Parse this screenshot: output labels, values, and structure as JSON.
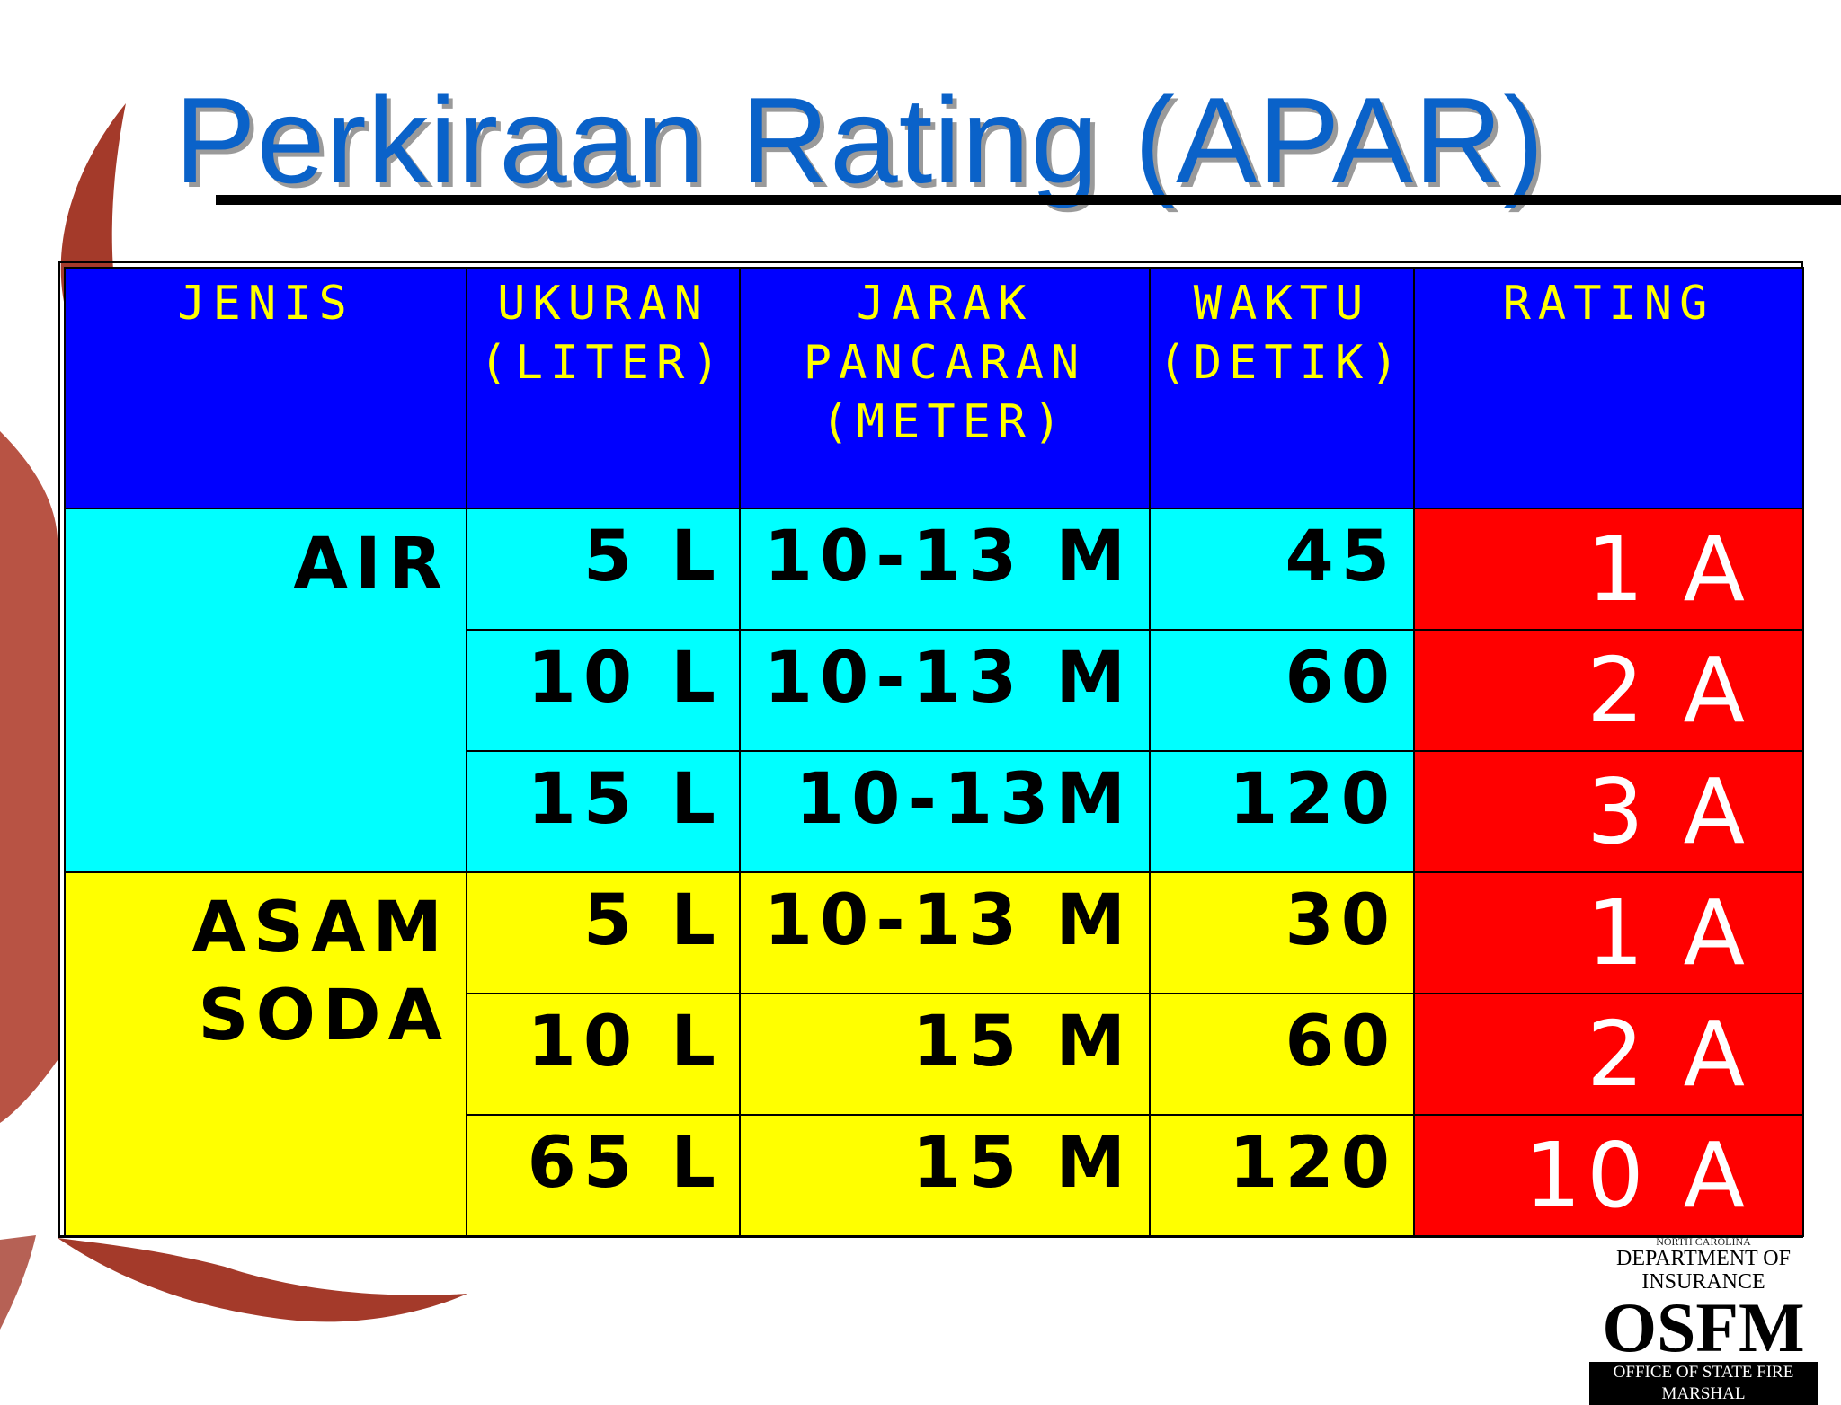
{
  "slide": {
    "title": "Perkiraan Rating (APAR)"
  },
  "table": {
    "headers": [
      [
        "JENIS"
      ],
      [
        "UKURAN",
        "(LITER)"
      ],
      [
        "JARAK",
        "PANCARAN",
        "(METER)"
      ],
      [
        "WAKTU",
        "(DETIK)"
      ],
      [
        "RATING"
      ]
    ],
    "groups": [
      {
        "type_lines": [
          "AIR"
        ],
        "color": "#00ffff",
        "rows": [
          {
            "ukuran": "5 L",
            "jarak": "10-13 M",
            "waktu": "45",
            "rating": "1 A"
          },
          {
            "ukuran": "10 L",
            "jarak": "10-13 M",
            "waktu": "60",
            "rating": "2 A"
          },
          {
            "ukuran": "15 L",
            "jarak": "10-13M",
            "waktu": "120",
            "rating": "3 A"
          }
        ]
      },
      {
        "type_lines": [
          "ASAM",
          "SODA"
        ],
        "color": "#ffff00",
        "rows": [
          {
            "ukuran": "5 L",
            "jarak": "10-13 M",
            "waktu": "30",
            "rating": "1 A"
          },
          {
            "ukuran": "10 L",
            "jarak": "15 M",
            "waktu": "60",
            "rating": "2 A"
          },
          {
            "ukuran": "65 L",
            "jarak": "15 M",
            "waktu": "120",
            "rating": "10 A"
          }
        ]
      }
    ],
    "colors": {
      "header_bg": "#0000ff",
      "header_text": "#ffff00",
      "rating_bg": "#ff0000",
      "rating_text": "#ffffff"
    }
  },
  "logo": {
    "small": "NORTH CAROLINA",
    "dept": "DEPARTMENT OF INSURANCE",
    "main": "OSFM",
    "bar": "OFFICE OF STATE FIRE MARSHAL"
  },
  "theme": {
    "title_color": "#0a62c9",
    "swoosh_color": "#a43a2a"
  }
}
